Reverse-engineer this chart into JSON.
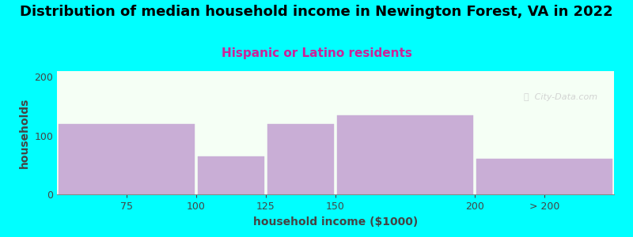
{
  "title": "Distribution of median household income in Newington Forest, VA in 2022",
  "subtitle": "Hispanic or Latino residents",
  "xlabel": "household income ($1000)",
  "ylabel": "households",
  "background_color": "#00FFFF",
  "plot_bg_color": "#f5fff5",
  "bar_color": "#c9aed6",
  "bar_edgecolor": "#c9aed6",
  "yticks": [
    0,
    100,
    200
  ],
  "ylim": [
    0,
    210
  ],
  "bins": [
    50,
    100,
    125,
    150,
    200,
    250
  ],
  "heights": [
    120,
    65,
    120,
    135,
    60
  ],
  "xtick_labels": [
    "75",
    "100",
    "125",
    "150",
    "200",
    "> 200"
  ],
  "xtick_positions": [
    75,
    100,
    125,
    150,
    200,
    225
  ],
  "title_fontsize": 13,
  "subtitle_fontsize": 11,
  "subtitle_color": "#cc2299",
  "axis_label_fontsize": 10,
  "tick_label_fontsize": 9,
  "watermark_text": "ⓘ  City-Data.com"
}
